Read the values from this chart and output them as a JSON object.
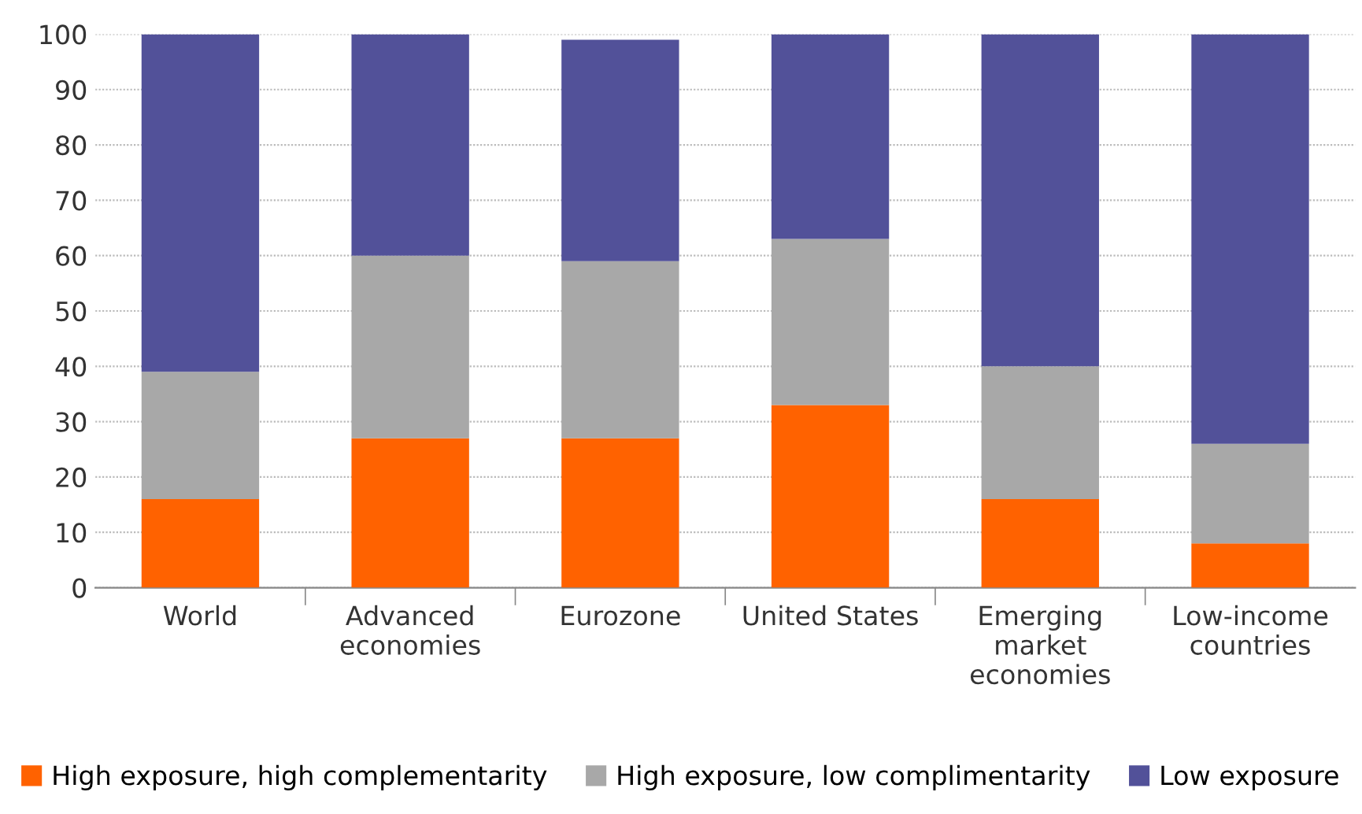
{
  "chart_data": {
    "type": "bar",
    "stacked": true,
    "categories": [
      "World",
      "Advanced\neconomies",
      "Eurozone",
      "United States",
      "Emerging\nmarket\neconomies",
      "Low-income\ncountries"
    ],
    "series": [
      {
        "name": "High exposure, high complementarity",
        "color": "#ff6200",
        "values": [
          16,
          27,
          27,
          33,
          16,
          8
        ]
      },
      {
        "name": "High exposure, low complimentarity",
        "color": "#a8a8a8",
        "values": [
          23,
          33,
          32,
          30,
          24,
          18
        ]
      },
      {
        "name": "Low exposure",
        "color": "#525199",
        "values": [
          61,
          40,
          40,
          37,
          60,
          74
        ]
      }
    ],
    "ylim": [
      0,
      100
    ],
    "yticks": [
      0,
      10,
      20,
      30,
      40,
      50,
      60,
      70,
      80,
      90,
      100
    ],
    "grid": "y",
    "legend": "bottom"
  }
}
